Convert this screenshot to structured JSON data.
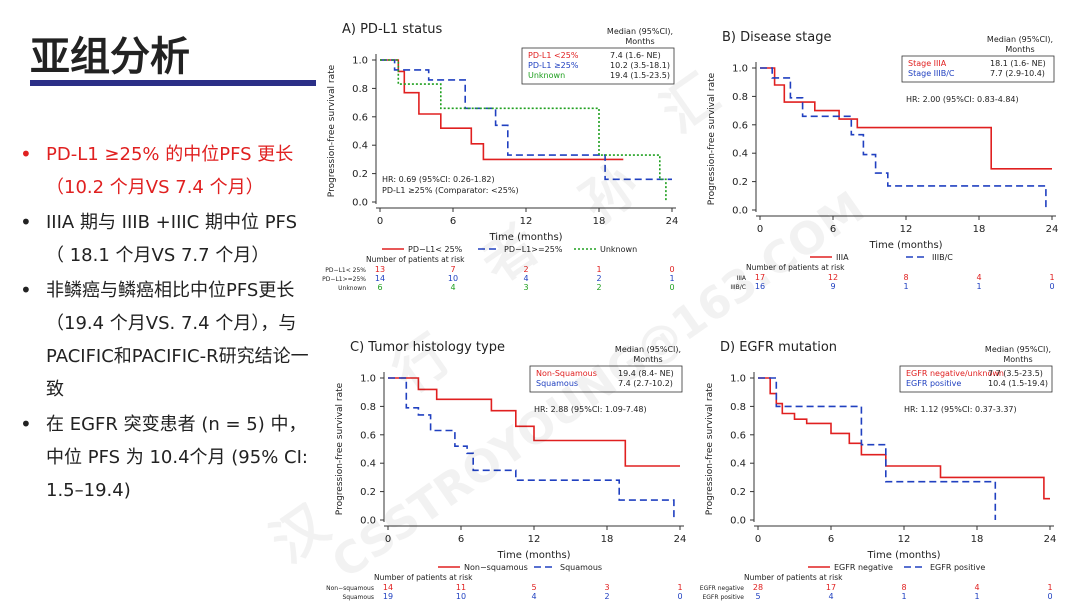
{
  "slide": {
    "title": "亚组分析",
    "bullets": [
      {
        "text": "PD-L1 ≥25% 的中位PFS 更长（10.2 个月VS 7.4 个月）",
        "highlight": true
      },
      {
        "text": "IIIA 期与 IIIB +IIIC 期中位 PFS （ 18.1 个月VS 7.7 个月）",
        "highlight": false
      },
      {
        "text": "非鳞癌与鳞癌相比中位PFS更长（19.4 个月VS. 7.4 个月），与PACIFIC和PACIFIC-R研究结论一致",
        "highlight": false
      },
      {
        "text": "在 EGFR 突变患者 (n = 5) 中，中位 PFS 为 10.4个月 (95% CI: 1.5–19.4)",
        "highlight": false
      }
    ],
    "watermark": [
      "汉",
      "行",
      "者",
      "孙",
      "汇",
      "CSSTROYOUNG@163.COM"
    ],
    "colors": {
      "highlight": "#e02020",
      "title_bar": "#2b2f87",
      "red": "#e02020",
      "blue": "#2040c0",
      "green": "#20a020"
    }
  },
  "chart_data": [
    {
      "type": "line",
      "title": "A) PD-L1 status",
      "xlabel": "Time (months)",
      "ylabel": "Progression-free survival rate",
      "xlim": [
        0,
        24
      ],
      "ylim": [
        0,
        1.0
      ],
      "xticks": [
        0,
        6,
        12,
        18,
        24
      ],
      "yticks": [
        0.0,
        0.2,
        0.4,
        0.6,
        0.8,
        1.0
      ],
      "legend_header": "Median (95%CI), Months",
      "legend": [
        {
          "label": "PD-L1 <25%",
          "value": "7.4 (1.6- NE)",
          "color": "#e02020"
        },
        {
          "label": "PD-L1 ≥25%",
          "value": "10.2 (3.5-18.1)",
          "color": "#2040c0"
        },
        {
          "label": "Unknown",
          "value": "19.4 (1.5-23.5)",
          "color": "#20a020"
        }
      ],
      "hr_text": [
        "HR: 0.69 (95%CI: 0.26-1.82)",
        "PD-L1 ≥25% (Comparator: <25%)"
      ],
      "bottom_legend": [
        "PD−L1< 25%",
        "PD−L1>=25%",
        "Unknown"
      ],
      "risk_title": "Number of patients at risk",
      "risk_rows": [
        {
          "label": "PD−L1< 25%",
          "values": [
            "13",
            "7",
            "2",
            "1",
            "0"
          ],
          "color": "#e02020"
        },
        {
          "label": "PD−L1>=25%",
          "values": [
            "14",
            "10",
            "4",
            "2",
            "1"
          ],
          "color": "#2040c0"
        },
        {
          "label": "Unknown",
          "values": [
            "6",
            "4",
            "3",
            "2",
            "0"
          ],
          "color": "#20a020"
        }
      ],
      "series": [
        {
          "name": "PD−L1< 25%",
          "color": "#e02020",
          "style": "solid",
          "x": [
            0,
            1.5,
            1.5,
            2.0,
            2.0,
            3.2,
            3.2,
            5.0,
            5.0,
            7.5,
            7.5,
            8.5,
            8.5,
            20
          ],
          "y": [
            1.0,
            1.0,
            0.92,
            0.92,
            0.77,
            0.77,
            0.62,
            0.62,
            0.52,
            0.52,
            0.41,
            0.41,
            0.3,
            0.3
          ]
        },
        {
          "name": "PD−L1>=25%",
          "color": "#2040c0",
          "style": "dashed",
          "x": [
            0,
            1.2,
            1.2,
            4.0,
            4.0,
            7.0,
            7.0,
            9.5,
            9.5,
            10.5,
            10.5,
            18.5,
            18.5,
            24
          ],
          "y": [
            1.0,
            1.0,
            0.93,
            0.93,
            0.86,
            0.86,
            0.66,
            0.66,
            0.54,
            0.54,
            0.33,
            0.33,
            0.16,
            0.16
          ]
        },
        {
          "name": "Unknown",
          "color": "#20a020",
          "style": "dotted",
          "x": [
            0,
            1.5,
            1.5,
            5.0,
            5.0,
            18.0,
            18.0,
            23.0,
            23.0,
            23.5,
            23.5
          ],
          "y": [
            1.0,
            1.0,
            0.83,
            0.83,
            0.66,
            0.66,
            0.33,
            0.33,
            0.16,
            0.16,
            0.0
          ]
        }
      ]
    },
    {
      "type": "line",
      "title": "B) Disease stage",
      "xlabel": "Time (months)",
      "ylabel": "Progression-free survival rate",
      "xlim": [
        0,
        24
      ],
      "ylim": [
        0,
        1.0
      ],
      "xticks": [
        0,
        6,
        12,
        18,
        24
      ],
      "yticks": [
        0.0,
        0.2,
        0.4,
        0.6,
        0.8,
        1.0
      ],
      "legend_header": "Median (95%CI), Months",
      "legend": [
        {
          "label": "Stage IIIA",
          "value": "18.1 (1.6- NE)",
          "color": "#e02020"
        },
        {
          "label": "Stage IIIB/C",
          "value": "7.7 (2.9-10.4)",
          "color": "#2040c0"
        }
      ],
      "hr_text": [
        "HR: 2.00 (95%CI: 0.83-4.84)"
      ],
      "bottom_legend": [
        "IIIA",
        "IIIB/C"
      ],
      "risk_title": "Number of patients at risk",
      "risk_rows": [
        {
          "label": "IIIA",
          "values": [
            "17",
            "12",
            "8",
            "4",
            "1"
          ],
          "color": "#e02020"
        },
        {
          "label": "IIIB/C",
          "values": [
            "16",
            "9",
            "1",
            "1",
            "0"
          ],
          "color": "#2040c0"
        }
      ],
      "series": [
        {
          "name": "IIIA",
          "color": "#e02020",
          "style": "solid",
          "x": [
            0,
            1.2,
            1.2,
            2.0,
            2.0,
            4.5,
            4.5,
            6.5,
            6.5,
            8.0,
            8.0,
            11.0,
            11.0,
            19.0,
            19.0,
            24
          ],
          "y": [
            1.0,
            1.0,
            0.88,
            0.88,
            0.76,
            0.76,
            0.7,
            0.7,
            0.64,
            0.64,
            0.58,
            0.58,
            0.58,
            0.58,
            0.29,
            0.29
          ]
        },
        {
          "name": "IIIB/C",
          "color": "#2040c0",
          "style": "dashed",
          "x": [
            0,
            1.0,
            1.0,
            2.5,
            2.5,
            3.5,
            3.5,
            7.5,
            7.5,
            8.5,
            8.5,
            9.5,
            9.5,
            10.5,
            10.5,
            23.5,
            23.5
          ],
          "y": [
            1.0,
            1.0,
            0.93,
            0.93,
            0.79,
            0.79,
            0.66,
            0.66,
            0.53,
            0.53,
            0.39,
            0.39,
            0.26,
            0.26,
            0.17,
            0.17,
            0.0
          ]
        }
      ]
    },
    {
      "type": "line",
      "title": "C) Tumor histology type",
      "xlabel": "Time (months)",
      "ylabel": "Progression-free survival rate",
      "xlim": [
        0,
        24
      ],
      "ylim": [
        0,
        1.0
      ],
      "xticks": [
        0,
        6,
        12,
        18,
        24
      ],
      "yticks": [
        0.0,
        0.2,
        0.4,
        0.6,
        0.8,
        1.0
      ],
      "legend_header": "Median (95%CI), Months",
      "legend": [
        {
          "label": "Non-Squamous",
          "value": "19.4 (8.4- NE)",
          "color": "#e02020"
        },
        {
          "label": "Squamous",
          "value": "7.4 (2.7-10.2)",
          "color": "#2040c0"
        }
      ],
      "hr_text": [
        "HR: 2.88 (95%CI: 1.09-7.48)"
      ],
      "bottom_legend": [
        "Non−squamous",
        "Squamous"
      ],
      "risk_title": "Number of patients at risk",
      "risk_rows": [
        {
          "label": "Non−squamous",
          "values": [
            "14",
            "11",
            "5",
            "3",
            "1"
          ],
          "color": "#e02020"
        },
        {
          "label": "Squamous",
          "values": [
            "19",
            "10",
            "4",
            "2",
            "0"
          ],
          "color": "#2040c0"
        }
      ],
      "series": [
        {
          "name": "Non−squamous",
          "color": "#e02020",
          "style": "solid",
          "x": [
            0,
            2.5,
            2.5,
            4.0,
            4.0,
            8.5,
            8.5,
            10.5,
            10.5,
            12.0,
            12.0,
            19.5,
            19.5,
            24
          ],
          "y": [
            1.0,
            1.0,
            0.92,
            0.92,
            0.85,
            0.85,
            0.77,
            0.77,
            0.66,
            0.66,
            0.56,
            0.56,
            0.38,
            0.38
          ]
        },
        {
          "name": "Squamous",
          "color": "#2040c0",
          "style": "dashed",
          "x": [
            0,
            1.5,
            1.5,
            2.5,
            2.5,
            3.5,
            3.5,
            5.5,
            5.5,
            6.5,
            6.5,
            7.0,
            7.0,
            10.5,
            10.5,
            19.0,
            19.0,
            23.5,
            23.5
          ],
          "y": [
            1.0,
            1.0,
            0.79,
            0.79,
            0.74,
            0.74,
            0.63,
            0.63,
            0.52,
            0.52,
            0.47,
            0.47,
            0.35,
            0.35,
            0.28,
            0.28,
            0.14,
            0.14,
            0.0
          ]
        }
      ]
    },
    {
      "type": "line",
      "title": "D) EGFR mutation",
      "xlabel": "Time (months)",
      "ylabel": "Progression-free survival rate",
      "xlim": [
        0,
        24
      ],
      "ylim": [
        0,
        1.0
      ],
      "xticks": [
        0,
        6,
        12,
        18,
        24
      ],
      "yticks": [
        0.0,
        0.2,
        0.4,
        0.6,
        0.8,
        1.0
      ],
      "legend_header": "Median (95%CI), Months",
      "legend": [
        {
          "label": "EGFR negative/unknown",
          "value": "7.7 (3.5-23.5)",
          "color": "#e02020"
        },
        {
          "label": "EGFR positive",
          "value": "10.4 (1.5-19.4)",
          "color": "#2040c0"
        }
      ],
      "hr_text": [
        "HR: 1.12 (95%CI: 0.37-3.37)"
      ],
      "bottom_legend": [
        "EGFR negative",
        "EGFR positive"
      ],
      "risk_title": "Number of patients at risk",
      "risk_rows": [
        {
          "label": "EGFR negative",
          "values": [
            "28",
            "17",
            "8",
            "4",
            "1"
          ],
          "color": "#e02020"
        },
        {
          "label": "EGFR positive",
          "values": [
            "5",
            "4",
            "1",
            "1",
            "0"
          ],
          "color": "#2040c0"
        }
      ],
      "series": [
        {
          "name": "EGFR negative",
          "color": "#e02020",
          "style": "solid",
          "x": [
            0,
            1.0,
            1.0,
            1.5,
            1.5,
            2.0,
            2.0,
            3.0,
            3.0,
            4.0,
            4.0,
            6.0,
            6.0,
            7.5,
            7.5,
            8.5,
            8.5,
            10.5,
            10.5,
            15.0,
            15.0,
            23.5,
            23.5,
            24
          ],
          "y": [
            1.0,
            1.0,
            0.89,
            0.89,
            0.82,
            0.82,
            0.75,
            0.75,
            0.71,
            0.71,
            0.68,
            0.68,
            0.61,
            0.61,
            0.54,
            0.54,
            0.46,
            0.46,
            0.38,
            0.38,
            0.3,
            0.3,
            0.15,
            0.15
          ]
        },
        {
          "name": "EGFR positive",
          "color": "#2040c0",
          "style": "dashed",
          "x": [
            0,
            1.5,
            1.5,
            8.5,
            8.5,
            10.5,
            10.5,
            19.5,
            19.5
          ],
          "y": [
            1.0,
            1.0,
            0.8,
            0.8,
            0.53,
            0.53,
            0.27,
            0.27,
            0.0
          ]
        }
      ]
    }
  ]
}
